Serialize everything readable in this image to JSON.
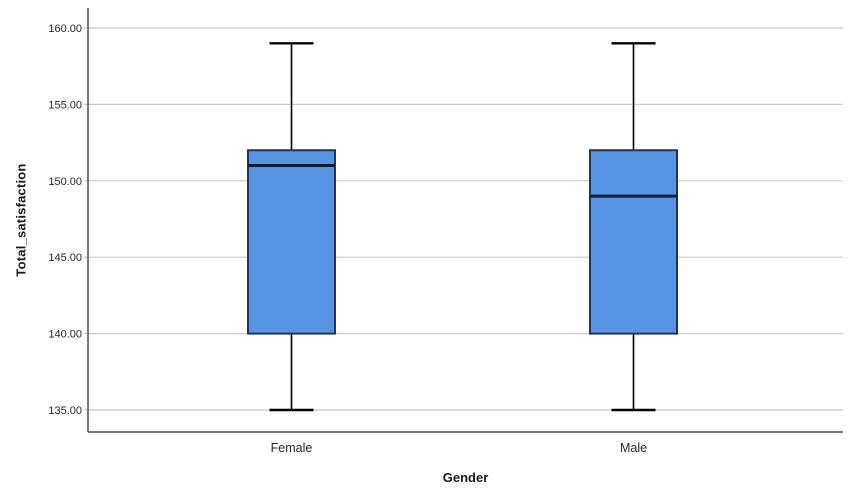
{
  "chart_data": {
    "type": "boxplot",
    "title": "",
    "xlabel": "Gender",
    "ylabel": "Total_satisfaction",
    "categories": [
      "Female",
      "Male"
    ],
    "yticks": [
      {
        "value": 135,
        "label": "135.00"
      },
      {
        "value": 140,
        "label": "140.00"
      },
      {
        "value": 145,
        "label": "145.00"
      },
      {
        "value": 150,
        "label": "150.00"
      },
      {
        "value": 155,
        "label": "155.00"
      },
      {
        "value": 160,
        "label": "160.00"
      }
    ],
    "ylim": [
      133.5,
      161.3
    ],
    "grid": "horizontal",
    "legend": "none",
    "series": [
      {
        "name": "Female",
        "min": 135,
        "q1": 140,
        "median": 151,
        "q3": 152,
        "max": 159
      },
      {
        "name": "Male",
        "min": 135,
        "q1": 140,
        "median": 149,
        "q3": 152,
        "max": 159
      }
    ],
    "colors": {
      "box_fill": "#5794E2",
      "box_border": "#21365C",
      "median": "#0E1C38",
      "whisker": "#000000",
      "gridline": "#CACACA",
      "axis": "#4D4D4D",
      "text": "#262626"
    }
  }
}
